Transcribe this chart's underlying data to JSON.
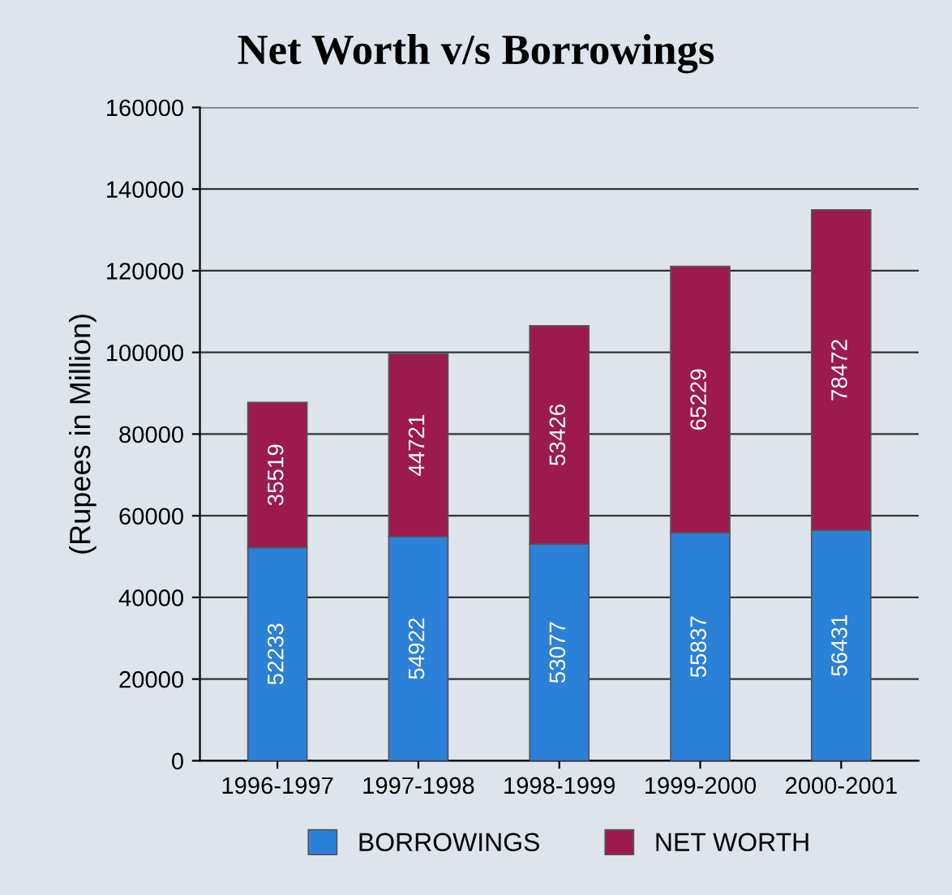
{
  "chart_data": {
    "type": "bar",
    "title": "Net Worth v/s Borrowings",
    "ylabel": "(Rupees in Million)",
    "categories": [
      "1996-1997",
      "1997-1998",
      "1998-1999",
      "1999-2000",
      "2000-2001"
    ],
    "stacked": true,
    "series": [
      {
        "name": "BORROWINGS",
        "color": "#2b80d8",
        "values": [
          52233,
          54922,
          53077,
          55837,
          56431
        ]
      },
      {
        "name": "NET WORTH",
        "color": "#9c1a4e",
        "values": [
          35519,
          44721,
          53426,
          65229,
          78472
        ]
      }
    ],
    "ylim": [
      0,
      160000
    ],
    "yticks": [
      0,
      20000,
      40000,
      60000,
      80000,
      100000,
      120000,
      140000,
      160000
    ],
    "grid": "y",
    "legend": "bottom",
    "data_labels": true
  }
}
